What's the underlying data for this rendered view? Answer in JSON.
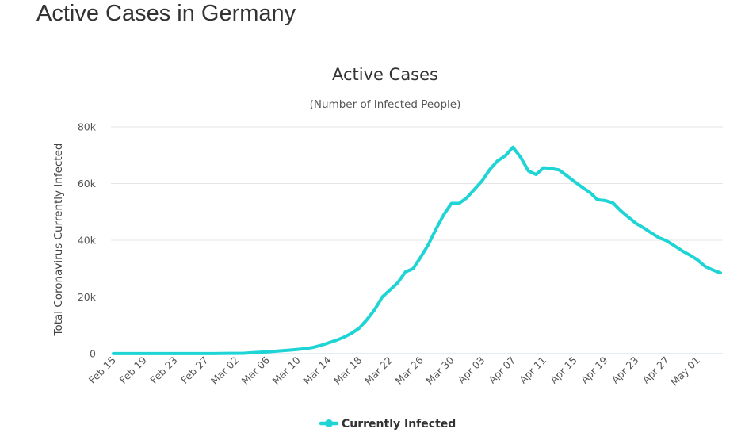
{
  "page": {
    "heading": "Active Cases in Germany"
  },
  "chart_data": {
    "type": "line",
    "title": "Active Cases",
    "subtitle": "(Number of Infected People)",
    "xlabel": "",
    "ylabel": "Total Coronavirus Currently Infected",
    "ylim": [
      0,
      80000
    ],
    "y_ticks": [
      0,
      20000,
      40000,
      60000,
      80000
    ],
    "y_tick_labels": [
      "0",
      "20k",
      "40k",
      "60k",
      "80k"
    ],
    "x_tick_labels": [
      "Feb 15",
      "Feb 19",
      "Feb 23",
      "Feb 27",
      "Mar 02",
      "Mar 06",
      "Mar 10",
      "Mar 14",
      "Mar 18",
      "Mar 22",
      "Mar 26",
      "Mar 30",
      "Apr 03",
      "Apr 07",
      "Apr 11",
      "Apr 15",
      "Apr 19",
      "Apr 23",
      "Apr 27",
      "May 01"
    ],
    "grid": true,
    "legend_position": "bottom-center",
    "series": [
      {
        "name": "Currently Infected",
        "color": "#1ed4d4",
        "values": [
          14,
          14,
          14,
          14,
          14,
          14,
          14,
          14,
          14,
          14,
          14,
          14,
          14,
          16,
          60,
          100,
          120,
          150,
          300,
          480,
          650,
          850,
          1050,
          1250,
          1500,
          1800,
          2200,
          2900,
          3800,
          4700,
          5800,
          7200,
          9000,
          12000,
          15500,
          20000,
          22500,
          25000,
          28800,
          30000,
          34000,
          38500,
          44000,
          49000,
          53000,
          53000,
          55000,
          58000,
          61000,
          65000,
          68000,
          69800,
          72800,
          69300,
          64500,
          63200,
          65600,
          65300,
          64800,
          62800,
          60700,
          58700,
          56900,
          54300,
          54000,
          53200,
          50500,
          48200,
          46000,
          44400,
          42600,
          40900,
          39800,
          38100,
          36300,
          34800,
          33100,
          30800,
          29500,
          28500
        ]
      }
    ]
  }
}
